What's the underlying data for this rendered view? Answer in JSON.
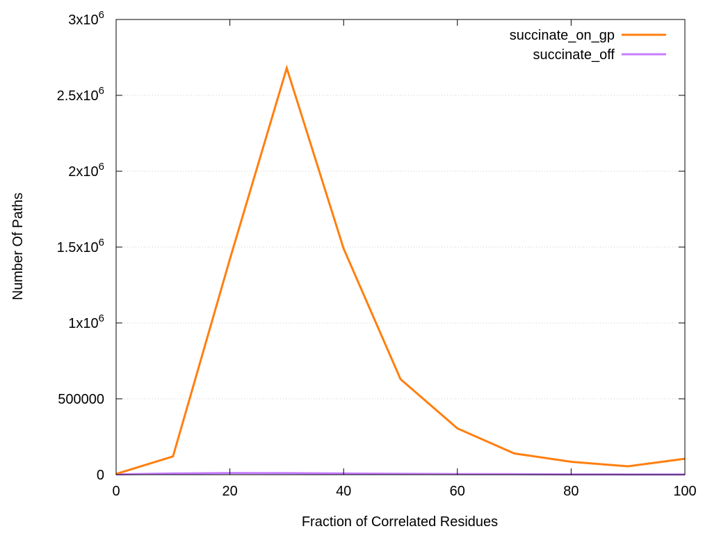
{
  "chart_data": {
    "type": "line",
    "xlabel": "Fraction of Correlated Residues",
    "ylabel": "Number Of Paths",
    "xlim": [
      0,
      100
    ],
    "ylim": [
      0,
      3000000
    ],
    "x_ticks": [
      0,
      20,
      40,
      60,
      80,
      100
    ],
    "x_tick_labels": [
      "0",
      "20",
      "40",
      "60",
      "80",
      "100"
    ],
    "y_ticks": [
      0,
      500000,
      1000000,
      1500000,
      2000000,
      2500000,
      3000000
    ],
    "y_tick_labels": [
      {
        "base": "0",
        "exp": ""
      },
      {
        "base": "500000",
        "exp": ""
      },
      {
        "base": "1x10",
        "exp": "6"
      },
      {
        "base": "1.5x10",
        "exp": "6"
      },
      {
        "base": "2x10",
        "exp": "6"
      },
      {
        "base": "2.5x10",
        "exp": "6"
      },
      {
        "base": "3x10",
        "exp": "6"
      }
    ],
    "grid": "horizontal dotted",
    "legend_position": "top-right",
    "x": [
      0,
      10,
      20,
      30,
      40,
      50,
      60,
      70,
      80,
      90,
      100
    ],
    "series": [
      {
        "name": "succinate_on_gp",
        "color": "#ff7f0e",
        "values": [
          5000,
          120000,
          1420000,
          2680000,
          1490000,
          630000,
          305000,
          140000,
          85000,
          55000,
          105000
        ]
      },
      {
        "name": "succinate_off",
        "color": "#c77dff",
        "values": [
          2000,
          8000,
          11000,
          10000,
          8000,
          6000,
          4000,
          3000,
          2000,
          1500,
          1500
        ]
      }
    ]
  }
}
